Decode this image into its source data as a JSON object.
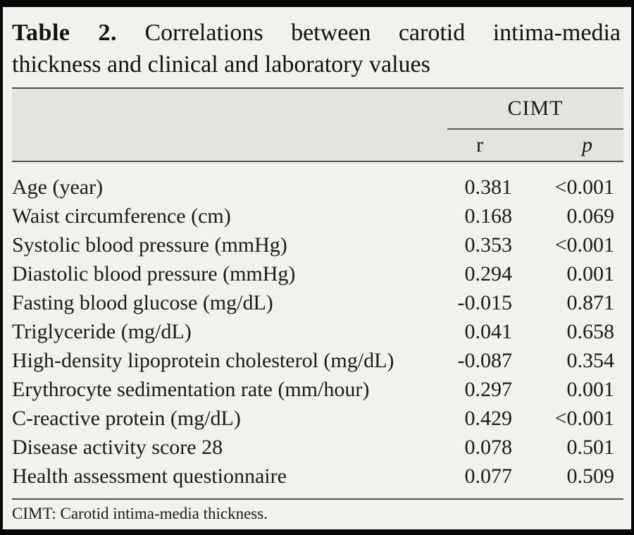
{
  "caption": {
    "label": "Table 2.",
    "line1": "Correlations between carotid intima-media",
    "line2": "thickness and clinical and laboratory values"
  },
  "header": {
    "group_label": "CIMT",
    "col_r": "r",
    "col_p": "p"
  },
  "rows": [
    {
      "label": "Age (year)",
      "r": "0.381",
      "p": "<0.001"
    },
    {
      "label": "Waist circumference (cm)",
      "r": "0.168",
      "p": "0.069"
    },
    {
      "label": "Systolic blood pressure (mmHg)",
      "r": "0.353",
      "p": "<0.001"
    },
    {
      "label": "Diastolic blood pressure (mmHg)",
      "r": "0.294",
      "p": "0.001"
    },
    {
      "label": "Fasting blood glucose (mg/dL)",
      "r": "-0.015",
      "p": "0.871"
    },
    {
      "label": "Triglyceride (mg/dL)",
      "r": "0.041",
      "p": "0.658"
    },
    {
      "label": "High-density lipoprotein cholesterol (mg/dL)",
      "r": "-0.087",
      "p": "0.354"
    },
    {
      "label": "Erythrocyte sedimentation rate (mm/hour)",
      "r": "0.297",
      "p": "0.001"
    },
    {
      "label": "C-reactive protein (mg/dL)",
      "r": "0.429",
      "p": "<0.001"
    },
    {
      "label": "Disease activity score 28",
      "r": "0.078",
      "p": "0.501"
    },
    {
      "label": "Health assessment questionnaire",
      "r": "0.077",
      "p": "0.509"
    }
  ],
  "footnote": "CIMT: Carotid intima-media thickness.",
  "colors": {
    "frame_border": "#070707",
    "page_background": "#f1f1ef",
    "header_band": "#e3e3e2",
    "rule": "#4d4d4d",
    "text": "#1a1a1a"
  }
}
